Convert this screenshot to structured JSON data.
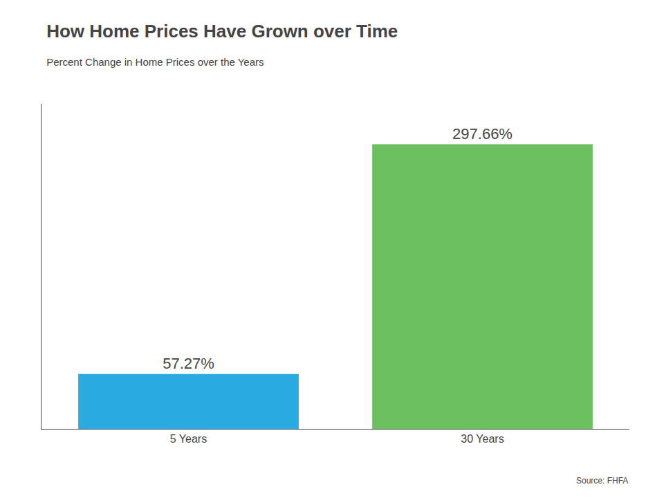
{
  "chart_data": {
    "type": "bar",
    "title": "How Home Prices Have Grown over Time",
    "subtitle": "Percent Change in Home Prices over the Years",
    "annotations": [
      "Source: FHFA"
    ],
    "categories": [
      "5 Years",
      "30 Years"
    ],
    "values": [
      57.27,
      297.66
    ],
    "value_labels": [
      "57.27%",
      "297.66%"
    ],
    "colors": [
      "#29ABE2",
      "#6DC060"
    ],
    "ylim": [
      0,
      340
    ],
    "tick_labels": "x",
    "grid": false,
    "data_labels": true
  }
}
